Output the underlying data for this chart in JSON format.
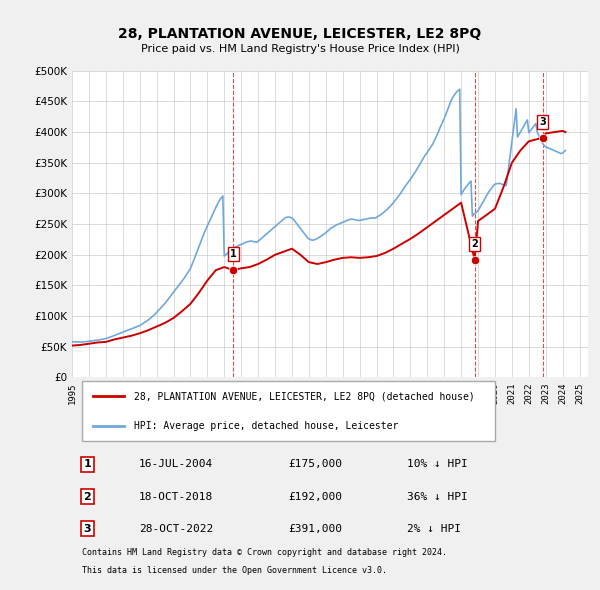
{
  "title": "28, PLANTATION AVENUE, LEICESTER, LE2 8PQ",
  "subtitle": "Price paid vs. HM Land Registry's House Price Index (HPI)",
  "xlabel": "",
  "ylabel": "",
  "ylim": [
    0,
    500000
  ],
  "yticks": [
    0,
    50000,
    100000,
    150000,
    200000,
    250000,
    300000,
    350000,
    400000,
    450000,
    500000
  ],
  "ytick_labels": [
    "£0",
    "£50K",
    "£100K",
    "£150K",
    "£200K",
    "£250K",
    "£300K",
    "£350K",
    "£400K",
    "£450K",
    "£500K"
  ],
  "background_color": "#f0f0f0",
  "plot_bg_color": "#ffffff",
  "grid_color": "#cccccc",
  "hpi_color": "#6fa8dc",
  "price_color": "#cc0000",
  "transaction_marker_color": "#cc0000",
  "transaction_bg_color": "#ffffff",
  "dashed_vline_color": "#cc0000",
  "transactions": [
    {
      "label": "1",
      "date_str": "16-JUL-2004",
      "price": 175000,
      "pct": "10%",
      "direction": "↓",
      "x_year": 2004.54
    },
    {
      "label": "2",
      "date_str": "18-OCT-2018",
      "price": 192000,
      "pct": "36%",
      "direction": "↓",
      "x_year": 2018.8
    },
    {
      "label": "3",
      "date_str": "28-OCT-2022",
      "price": 391000,
      "pct": "2%",
      "direction": "↓",
      "x_year": 2022.82
    }
  ],
  "legend_line1": "28, PLANTATION AVENUE, LEICESTER, LE2 8PQ (detached house)",
  "legend_line2": "HPI: Average price, detached house, Leicester",
  "footnote1": "Contains HM Land Registry data © Crown copyright and database right 2024.",
  "footnote2": "This data is licensed under the Open Government Licence v3.0.",
  "xlim": [
    1995,
    2025.5
  ],
  "xtick_years": [
    1995,
    1996,
    1997,
    1998,
    1999,
    2000,
    2001,
    2002,
    2003,
    2004,
    2005,
    2006,
    2007,
    2008,
    2009,
    2010,
    2011,
    2012,
    2013,
    2014,
    2015,
    2016,
    2017,
    2018,
    2019,
    2020,
    2021,
    2022,
    2023,
    2024,
    2025
  ],
  "hpi_data": {
    "x": [
      1995.0,
      1995.083,
      1995.167,
      1995.25,
      1995.333,
      1995.417,
      1995.5,
      1995.583,
      1995.667,
      1995.75,
      1995.833,
      1995.917,
      1996.0,
      1996.083,
      1996.167,
      1996.25,
      1996.333,
      1996.417,
      1996.5,
      1996.583,
      1996.667,
      1996.75,
      1996.833,
      1996.917,
      1997.0,
      1997.083,
      1997.167,
      1997.25,
      1997.333,
      1997.417,
      1997.5,
      1997.583,
      1997.667,
      1997.75,
      1997.833,
      1997.917,
      1998.0,
      1998.083,
      1998.167,
      1998.25,
      1998.333,
      1998.417,
      1998.5,
      1998.583,
      1998.667,
      1998.75,
      1998.833,
      1998.917,
      1999.0,
      1999.083,
      1999.167,
      1999.25,
      1999.333,
      1999.417,
      1999.5,
      1999.583,
      1999.667,
      1999.75,
      1999.833,
      1999.917,
      2000.0,
      2000.083,
      2000.167,
      2000.25,
      2000.333,
      2000.417,
      2000.5,
      2000.583,
      2000.667,
      2000.75,
      2000.833,
      2000.917,
      2001.0,
      2001.083,
      2001.167,
      2001.25,
      2001.333,
      2001.417,
      2001.5,
      2001.583,
      2001.667,
      2001.75,
      2001.833,
      2001.917,
      2002.0,
      2002.083,
      2002.167,
      2002.25,
      2002.333,
      2002.417,
      2002.5,
      2002.583,
      2002.667,
      2002.75,
      2002.833,
      2002.917,
      2003.0,
      2003.083,
      2003.167,
      2003.25,
      2003.333,
      2003.417,
      2003.5,
      2003.583,
      2003.667,
      2003.75,
      2003.833,
      2003.917,
      2004.0,
      2004.083,
      2004.167,
      2004.25,
      2004.333,
      2004.417,
      2004.5,
      2004.583,
      2004.667,
      2004.75,
      2004.833,
      2004.917,
      2005.0,
      2005.083,
      2005.167,
      2005.25,
      2005.333,
      2005.417,
      2005.5,
      2005.583,
      2005.667,
      2005.75,
      2005.833,
      2005.917,
      2006.0,
      2006.083,
      2006.167,
      2006.25,
      2006.333,
      2006.417,
      2006.5,
      2006.583,
      2006.667,
      2006.75,
      2006.833,
      2006.917,
      2007.0,
      2007.083,
      2007.167,
      2007.25,
      2007.333,
      2007.417,
      2007.5,
      2007.583,
      2007.667,
      2007.75,
      2007.833,
      2007.917,
      2008.0,
      2008.083,
      2008.167,
      2008.25,
      2008.333,
      2008.417,
      2008.5,
      2008.583,
      2008.667,
      2008.75,
      2008.833,
      2008.917,
      2009.0,
      2009.083,
      2009.167,
      2009.25,
      2009.333,
      2009.417,
      2009.5,
      2009.583,
      2009.667,
      2009.75,
      2009.833,
      2009.917,
      2010.0,
      2010.083,
      2010.167,
      2010.25,
      2010.333,
      2010.417,
      2010.5,
      2010.583,
      2010.667,
      2010.75,
      2010.833,
      2010.917,
      2011.0,
      2011.083,
      2011.167,
      2011.25,
      2011.333,
      2011.417,
      2011.5,
      2011.583,
      2011.667,
      2011.75,
      2011.833,
      2011.917,
      2012.0,
      2012.083,
      2012.167,
      2012.25,
      2012.333,
      2012.417,
      2012.5,
      2012.583,
      2012.667,
      2012.75,
      2012.833,
      2012.917,
      2013.0,
      2013.083,
      2013.167,
      2013.25,
      2013.333,
      2013.417,
      2013.5,
      2013.583,
      2013.667,
      2013.75,
      2013.833,
      2013.917,
      2014.0,
      2014.083,
      2014.167,
      2014.25,
      2014.333,
      2014.417,
      2014.5,
      2014.583,
      2014.667,
      2014.75,
      2014.833,
      2014.917,
      2015.0,
      2015.083,
      2015.167,
      2015.25,
      2015.333,
      2015.417,
      2015.5,
      2015.583,
      2015.667,
      2015.75,
      2015.833,
      2015.917,
      2016.0,
      2016.083,
      2016.167,
      2016.25,
      2016.333,
      2016.417,
      2016.5,
      2016.583,
      2016.667,
      2016.75,
      2016.833,
      2016.917,
      2017.0,
      2017.083,
      2017.167,
      2017.25,
      2017.333,
      2017.417,
      2017.5,
      2017.583,
      2017.667,
      2017.75,
      2017.833,
      2017.917,
      2018.0,
      2018.083,
      2018.167,
      2018.25,
      2018.333,
      2018.417,
      2018.5,
      2018.583,
      2018.667,
      2018.75,
      2018.833,
      2018.917,
      2019.0,
      2019.083,
      2019.167,
      2019.25,
      2019.333,
      2019.417,
      2019.5,
      2019.583,
      2019.667,
      2019.75,
      2019.833,
      2019.917,
      2020.0,
      2020.083,
      2020.167,
      2020.25,
      2020.333,
      2020.417,
      2020.5,
      2020.583,
      2020.667,
      2020.75,
      2020.833,
      2020.917,
      2021.0,
      2021.083,
      2021.167,
      2021.25,
      2021.333,
      2021.417,
      2021.5,
      2021.583,
      2021.667,
      2021.75,
      2021.833,
      2021.917,
      2022.0,
      2022.083,
      2022.167,
      2022.25,
      2022.333,
      2022.417,
      2022.5,
      2022.583,
      2022.667,
      2022.75,
      2022.833,
      2022.917,
      2023.0,
      2023.083,
      2023.167,
      2023.25,
      2023.333,
      2023.417,
      2023.5,
      2023.583,
      2023.667,
      2023.75,
      2023.833,
      2023.917,
      2024.0,
      2024.083,
      2024.167
    ],
    "y": [
      58000,
      58200,
      58100,
      57900,
      57800,
      57700,
      57600,
      57800,
      58000,
      58300,
      58500,
      58700,
      59000,
      59300,
      59500,
      59800,
      60100,
      60400,
      60800,
      61200,
      61600,
      62000,
      62500,
      63000,
      63500,
      64200,
      65000,
      65800,
      66600,
      67500,
      68400,
      69300,
      70200,
      71100,
      72000,
      72900,
      73800,
      74700,
      75600,
      76500,
      77400,
      78300,
      79200,
      80100,
      81000,
      81900,
      82800,
      83700,
      84600,
      86000,
      87500,
      89000,
      90500,
      92000,
      93500,
      95500,
      97500,
      99500,
      101500,
      103500,
      106000,
      108500,
      111000,
      113500,
      116000,
      118500,
      121000,
      124000,
      127000,
      130000,
      133000,
      136000,
      139000,
      142000,
      145000,
      148000,
      151000,
      154000,
      157000,
      160000,
      163500,
      167000,
      170500,
      174000,
      177500,
      183000,
      189000,
      195000,
      201000,
      207000,
      213000,
      219000,
      225000,
      231000,
      237000,
      242000,
      247000,
      252000,
      257000,
      262000,
      267000,
      272000,
      277000,
      282000,
      286000,
      290000,
      293000,
      296000,
      198000,
      200000,
      202000,
      204000,
      206000,
      208000,
      210000,
      212000,
      213000,
      214000,
      215000,
      216000,
      217000,
      218000,
      219000,
      220000,
      221000,
      221500,
      222000,
      222500,
      222000,
      221500,
      221000,
      220500,
      222000,
      224000,
      226000,
      228000,
      230000,
      232000,
      234000,
      236000,
      238000,
      240000,
      242000,
      244000,
      246000,
      248000,
      250000,
      252000,
      254000,
      256000,
      258000,
      260000,
      261000,
      261500,
      261500,
      261000,
      260000,
      258000,
      255000,
      252000,
      249000,
      246000,
      243000,
      240000,
      237000,
      234000,
      231000,
      228000,
      226000,
      225000,
      224000,
      224000,
      224500,
      225500,
      226500,
      228000,
      229500,
      231000,
      232500,
      234000,
      236000,
      238000,
      240000,
      242000,
      244000,
      245000,
      246500,
      248000,
      249000,
      250000,
      251000,
      252000,
      253000,
      254000,
      255000,
      256000,
      257000,
      257500,
      258000,
      258000,
      257500,
      257000,
      256500,
      256000,
      256000,
      256500,
      257000,
      257500,
      258000,
      258500,
      259000,
      259500,
      260000,
      260000,
      260000,
      260000,
      261000,
      262500,
      264000,
      265500,
      267000,
      269000,
      271000,
      273000,
      275000,
      277500,
      280000,
      282500,
      285000,
      288000,
      291000,
      294000,
      297000,
      300000,
      303500,
      307000,
      310500,
      314000,
      317000,
      320000,
      323000,
      326500,
      330000,
      333500,
      337000,
      341000,
      345000,
      349000,
      353000,
      357000,
      360500,
      364000,
      367000,
      370500,
      374000,
      377500,
      381000,
      386000,
      391000,
      396000,
      401000,
      407000,
      412000,
      417000,
      422000,
      428000,
      434000,
      440000,
      446000,
      452000,
      456000,
      460000,
      463000,
      466000,
      468000,
      470000,
      298000,
      302000,
      306000,
      309000,
      312000,
      315000,
      318000,
      320000,
      263000,
      266000,
      268000,
      270000,
      272000,
      276000,
      280000,
      284000,
      288000,
      292000,
      296000,
      300000,
      304000,
      307000,
      310000,
      313000,
      315000,
      316000,
      316000,
      316500,
      316000,
      315000,
      314000,
      313500,
      313000,
      330000,
      348000,
      366000,
      384000,
      402000,
      420000,
      438000,
      392000,
      396000,
      400000,
      404000,
      408000,
      412000,
      416000,
      420000,
      399000,
      402000,
      405000,
      408000,
      411000,
      414000,
      400000,
      395000,
      390000,
      385000,
      381000,
      378000,
      376000,
      375000,
      374000,
      373000,
      372000,
      371000,
      370000,
      369000,
      368000,
      367000,
      366000,
      365000,
      366000,
      368000,
      370000
    ]
  },
  "price_data": {
    "x": [
      1995.0,
      1995.5,
      1996.0,
      1996.5,
      1997.0,
      1997.5,
      1998.0,
      1998.5,
      1999.0,
      1999.5,
      2000.0,
      2000.5,
      2001.0,
      2001.5,
      2002.0,
      2002.5,
      2003.0,
      2003.5,
      2004.0,
      2004.54,
      2005.0,
      2005.5,
      2006.0,
      2006.5,
      2007.0,
      2007.5,
      2008.0,
      2008.5,
      2009.0,
      2009.5,
      2010.0,
      2010.5,
      2011.0,
      2011.5,
      2012.0,
      2012.5,
      2013.0,
      2013.5,
      2014.0,
      2014.5,
      2015.0,
      2015.5,
      2016.0,
      2016.5,
      2017.0,
      2017.5,
      2018.0,
      2018.8,
      2019.0,
      2019.5,
      2020.0,
      2020.5,
      2021.0,
      2021.5,
      2022.0,
      2022.82,
      2023.0,
      2023.5,
      2024.0,
      2024.167
    ],
    "y": [
      52000,
      53000,
      55000,
      57000,
      58000,
      62000,
      65000,
      68000,
      72000,
      77000,
      83000,
      89000,
      97000,
      108000,
      120000,
      138000,
      158000,
      175000,
      180000,
      175000,
      178000,
      180000,
      185000,
      192000,
      200000,
      205000,
      210000,
      200000,
      188000,
      185000,
      188000,
      192000,
      195000,
      196000,
      195000,
      196000,
      198000,
      203000,
      210000,
      218000,
      226000,
      235000,
      245000,
      255000,
      265000,
      275000,
      285000,
      192000,
      255000,
      265000,
      275000,
      310000,
      350000,
      370000,
      385000,
      391000,
      398000,
      400000,
      402000,
      400000
    ]
  }
}
